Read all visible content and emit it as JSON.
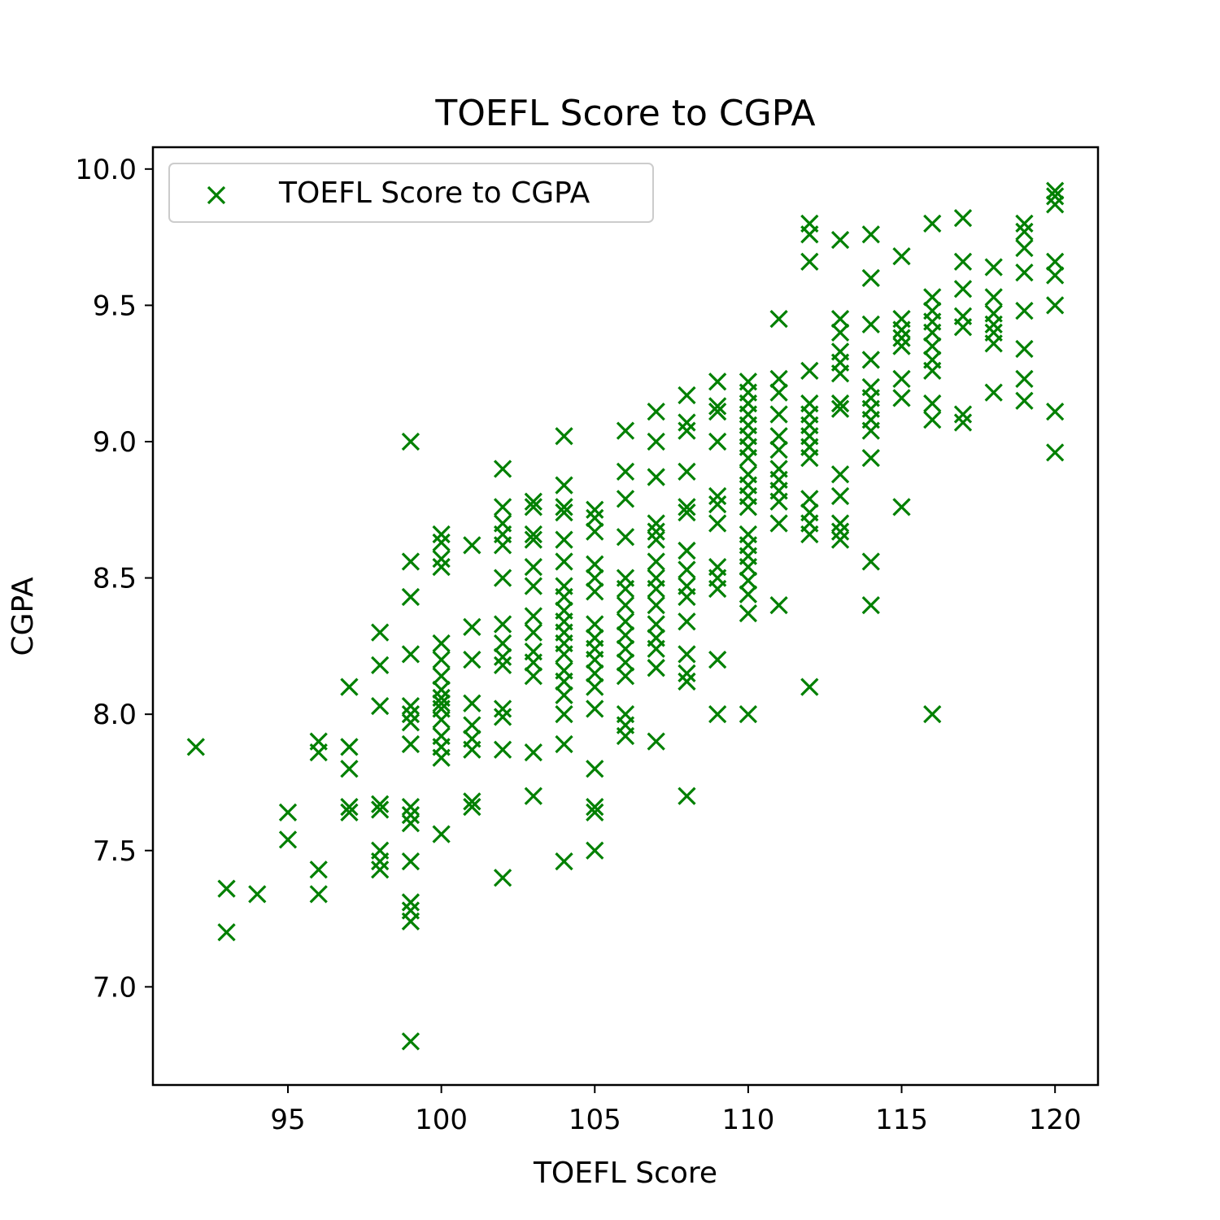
{
  "chart_data": {
    "type": "scatter",
    "title": "TOEFL Score to CGPA",
    "xlabel": "TOEFL Score",
    "ylabel": "CGPA",
    "xlim": [
      90.6,
      121.4
    ],
    "ylim": [
      6.64,
      10.08
    ],
    "xticks": [
      95,
      100,
      105,
      110,
      115,
      120
    ],
    "xtick_labels": [
      "95",
      "100",
      "105",
      "110",
      "115",
      "120"
    ],
    "yticks": [
      7.0,
      7.5,
      8.0,
      8.5,
      9.0,
      9.5,
      10.0
    ],
    "ytick_labels": [
      "7.0",
      "7.5",
      "8.0",
      "8.5",
      "9.0",
      "9.5",
      "10.0"
    ],
    "legend": {
      "position": "upper-left",
      "label": "TOEFL Score to CGPA"
    },
    "marker": "x",
    "color": "#008000",
    "grid": false,
    "series": [
      {
        "name": "TOEFL Score to CGPA",
        "points": [
          [
            92,
            7.88
          ],
          [
            93,
            7.36
          ],
          [
            93,
            7.2
          ],
          [
            94,
            7.34
          ],
          [
            95,
            7.64
          ],
          [
            95,
            7.54
          ],
          [
            96,
            7.9
          ],
          [
            96,
            7.86
          ],
          [
            96,
            7.43
          ],
          [
            96,
            7.34
          ],
          [
            97,
            8.1
          ],
          [
            97,
            7.88
          ],
          [
            97,
            7.8
          ],
          [
            97,
            7.66
          ],
          [
            97,
            7.64
          ],
          [
            98,
            8.3
          ],
          [
            98,
            8.18
          ],
          [
            98,
            8.03
          ],
          [
            98,
            7.67
          ],
          [
            98,
            7.65
          ],
          [
            98,
            7.5
          ],
          [
            98,
            7.46
          ],
          [
            98,
            7.43
          ],
          [
            99,
            9.0
          ],
          [
            99,
            8.56
          ],
          [
            99,
            8.43
          ],
          [
            99,
            8.22
          ],
          [
            99,
            8.03
          ],
          [
            99,
            8.0
          ],
          [
            99,
            7.97
          ],
          [
            99,
            7.89
          ],
          [
            99,
            7.66
          ],
          [
            99,
            7.63
          ],
          [
            99,
            7.6
          ],
          [
            99,
            7.46
          ],
          [
            99,
            7.31
          ],
          [
            99,
            7.28
          ],
          [
            99,
            7.24
          ],
          [
            99,
            6.8
          ],
          [
            100,
            8.66
          ],
          [
            100,
            8.63
          ],
          [
            100,
            8.57
          ],
          [
            100,
            8.54
          ],
          [
            100,
            8.26
          ],
          [
            100,
            8.2
          ],
          [
            100,
            8.14
          ],
          [
            100,
            8.09
          ],
          [
            100,
            8.06
          ],
          [
            100,
            8.04
          ],
          [
            100,
            8.02
          ],
          [
            100,
            7.98
          ],
          [
            100,
            7.92
          ],
          [
            100,
            7.88
          ],
          [
            100,
            7.84
          ],
          [
            100,
            7.56
          ],
          [
            101,
            8.62
          ],
          [
            101,
            8.32
          ],
          [
            101,
            8.2
          ],
          [
            101,
            8.04
          ],
          [
            101,
            7.96
          ],
          [
            101,
            7.91
          ],
          [
            101,
            7.87
          ],
          [
            101,
            7.68
          ],
          [
            101,
            7.66
          ],
          [
            102,
            8.9
          ],
          [
            102,
            8.76
          ],
          [
            102,
            8.7
          ],
          [
            102,
            8.66
          ],
          [
            102,
            8.62
          ],
          [
            102,
            8.5
          ],
          [
            102,
            8.33
          ],
          [
            102,
            8.26
          ],
          [
            102,
            8.21
          ],
          [
            102,
            8.18
          ],
          [
            102,
            8.02
          ],
          [
            102,
            7.99
          ],
          [
            102,
            7.87
          ],
          [
            102,
            7.4
          ],
          [
            103,
            8.78
          ],
          [
            103,
            8.76
          ],
          [
            103,
            8.66
          ],
          [
            103,
            8.64
          ],
          [
            103,
            8.54
          ],
          [
            103,
            8.47
          ],
          [
            103,
            8.36
          ],
          [
            103,
            8.3
          ],
          [
            103,
            8.23
          ],
          [
            103,
            8.19
          ],
          [
            103,
            8.14
          ],
          [
            103,
            7.86
          ],
          [
            103,
            7.7
          ],
          [
            104,
            9.02
          ],
          [
            104,
            8.84
          ],
          [
            104,
            8.76
          ],
          [
            104,
            8.74
          ],
          [
            104,
            8.64
          ],
          [
            104,
            8.56
          ],
          [
            104,
            8.47
          ],
          [
            104,
            8.43
          ],
          [
            104,
            8.38
          ],
          [
            104,
            8.34
          ],
          [
            104,
            8.3
          ],
          [
            104,
            8.26
          ],
          [
            104,
            8.22
          ],
          [
            104,
            8.16
          ],
          [
            104,
            8.12
          ],
          [
            104,
            8.07
          ],
          [
            104,
            8.0
          ],
          [
            104,
            7.89
          ],
          [
            104,
            7.46
          ],
          [
            105,
            8.75
          ],
          [
            105,
            8.72
          ],
          [
            105,
            8.67
          ],
          [
            105,
            8.55
          ],
          [
            105,
            8.5
          ],
          [
            105,
            8.45
          ],
          [
            105,
            8.33
          ],
          [
            105,
            8.28
          ],
          [
            105,
            8.24
          ],
          [
            105,
            8.2
          ],
          [
            105,
            8.15
          ],
          [
            105,
            8.1
          ],
          [
            105,
            8.02
          ],
          [
            105,
            7.8
          ],
          [
            105,
            7.66
          ],
          [
            105,
            7.64
          ],
          [
            105,
            7.5
          ],
          [
            106,
            9.04
          ],
          [
            106,
            8.89
          ],
          [
            106,
            8.79
          ],
          [
            106,
            8.65
          ],
          [
            106,
            8.5
          ],
          [
            106,
            8.46
          ],
          [
            106,
            8.4
          ],
          [
            106,
            8.34
          ],
          [
            106,
            8.29
          ],
          [
            106,
            8.24
          ],
          [
            106,
            8.19
          ],
          [
            106,
            8.14
          ],
          [
            106,
            8.0
          ],
          [
            106,
            7.96
          ],
          [
            106,
            7.92
          ],
          [
            107,
            9.11
          ],
          [
            107,
            9.0
          ],
          [
            107,
            8.87
          ],
          [
            107,
            8.7
          ],
          [
            107,
            8.67
          ],
          [
            107,
            8.64
          ],
          [
            107,
            8.56
          ],
          [
            107,
            8.5
          ],
          [
            107,
            8.46
          ],
          [
            107,
            8.4
          ],
          [
            107,
            8.33
          ],
          [
            107,
            8.28
          ],
          [
            107,
            8.24
          ],
          [
            107,
            8.17
          ],
          [
            107,
            7.9
          ],
          [
            108,
            9.17
          ],
          [
            108,
            9.07
          ],
          [
            108,
            9.04
          ],
          [
            108,
            8.89
          ],
          [
            108,
            8.76
          ],
          [
            108,
            8.74
          ],
          [
            108,
            8.6
          ],
          [
            108,
            8.53
          ],
          [
            108,
            8.47
          ],
          [
            108,
            8.43
          ],
          [
            108,
            8.34
          ],
          [
            108,
            8.22
          ],
          [
            108,
            8.15
          ],
          [
            108,
            8.12
          ],
          [
            108,
            7.7
          ],
          [
            109,
            9.22
          ],
          [
            109,
            9.13
          ],
          [
            109,
            9.11
          ],
          [
            109,
            9.0
          ],
          [
            109,
            8.8
          ],
          [
            109,
            8.77
          ],
          [
            109,
            8.7
          ],
          [
            109,
            8.54
          ],
          [
            109,
            8.5
          ],
          [
            109,
            8.46
          ],
          [
            109,
            8.2
          ],
          [
            109,
            8.0
          ],
          [
            110,
            9.22
          ],
          [
            110,
            9.18
          ],
          [
            110,
            9.14
          ],
          [
            110,
            9.1
          ],
          [
            110,
            9.06
          ],
          [
            110,
            9.02
          ],
          [
            110,
            8.98
          ],
          [
            110,
            8.94
          ],
          [
            110,
            8.88
          ],
          [
            110,
            8.84
          ],
          [
            110,
            8.8
          ],
          [
            110,
            8.76
          ],
          [
            110,
            8.66
          ],
          [
            110,
            8.62
          ],
          [
            110,
            8.58
          ],
          [
            110,
            8.54
          ],
          [
            110,
            8.49
          ],
          [
            110,
            8.44
          ],
          [
            110,
            8.37
          ],
          [
            110,
            8.0
          ],
          [
            111,
            9.45
          ],
          [
            111,
            9.23
          ],
          [
            111,
            9.18
          ],
          [
            111,
            9.1
          ],
          [
            111,
            9.02
          ],
          [
            111,
            8.97
          ],
          [
            111,
            8.9
          ],
          [
            111,
            8.86
          ],
          [
            111,
            8.82
          ],
          [
            111,
            8.78
          ],
          [
            111,
            8.7
          ],
          [
            111,
            8.4
          ],
          [
            112,
            9.8
          ],
          [
            112,
            9.76
          ],
          [
            112,
            9.66
          ],
          [
            112,
            9.26
          ],
          [
            112,
            9.14
          ],
          [
            112,
            9.1
          ],
          [
            112,
            9.06
          ],
          [
            112,
            9.02
          ],
          [
            112,
            8.98
          ],
          [
            112,
            8.94
          ],
          [
            112,
            8.79
          ],
          [
            112,
            8.74
          ],
          [
            112,
            8.7
          ],
          [
            112,
            8.66
          ],
          [
            112,
            8.1
          ],
          [
            113,
            9.74
          ],
          [
            113,
            9.45
          ],
          [
            113,
            9.4
          ],
          [
            113,
            9.33
          ],
          [
            113,
            9.29
          ],
          [
            113,
            9.25
          ],
          [
            113,
            9.14
          ],
          [
            113,
            9.12
          ],
          [
            113,
            8.88
          ],
          [
            113,
            8.8
          ],
          [
            113,
            8.7
          ],
          [
            113,
            8.67
          ],
          [
            113,
            8.64
          ],
          [
            114,
            9.76
          ],
          [
            114,
            9.6
          ],
          [
            114,
            9.43
          ],
          [
            114,
            9.3
          ],
          [
            114,
            9.2
          ],
          [
            114,
            9.16
          ],
          [
            114,
            9.12
          ],
          [
            114,
            9.08
          ],
          [
            114,
            9.04
          ],
          [
            114,
            8.94
          ],
          [
            114,
            8.56
          ],
          [
            114,
            8.4
          ],
          [
            115,
            9.68
          ],
          [
            115,
            9.45
          ],
          [
            115,
            9.41
          ],
          [
            115,
            9.38
          ],
          [
            115,
            9.35
          ],
          [
            115,
            9.23
          ],
          [
            115,
            9.16
          ],
          [
            115,
            8.76
          ],
          [
            116,
            9.8
          ],
          [
            116,
            9.53
          ],
          [
            116,
            9.48
          ],
          [
            116,
            9.44
          ],
          [
            116,
            9.4
          ],
          [
            116,
            9.35
          ],
          [
            116,
            9.3
          ],
          [
            116,
            9.26
          ],
          [
            116,
            9.14
          ],
          [
            116,
            9.08
          ],
          [
            116,
            8.0
          ],
          [
            117,
            9.82
          ],
          [
            117,
            9.66
          ],
          [
            117,
            9.56
          ],
          [
            117,
            9.46
          ],
          [
            117,
            9.42
          ],
          [
            117,
            9.1
          ],
          [
            117,
            9.07
          ],
          [
            118,
            9.64
          ],
          [
            118,
            9.53
          ],
          [
            118,
            9.47
          ],
          [
            118,
            9.43
          ],
          [
            118,
            9.4
          ],
          [
            118,
            9.36
          ],
          [
            118,
            9.18
          ],
          [
            119,
            9.8
          ],
          [
            119,
            9.77
          ],
          [
            119,
            9.71
          ],
          [
            119,
            9.62
          ],
          [
            119,
            9.48
          ],
          [
            119,
            9.34
          ],
          [
            119,
            9.23
          ],
          [
            119,
            9.15
          ],
          [
            120,
            9.92
          ],
          [
            120,
            9.9
          ],
          [
            120,
            9.87
          ],
          [
            120,
            9.66
          ],
          [
            120,
            9.61
          ],
          [
            120,
            9.5
          ],
          [
            120,
            9.11
          ],
          [
            120,
            8.96
          ]
        ]
      }
    ]
  }
}
